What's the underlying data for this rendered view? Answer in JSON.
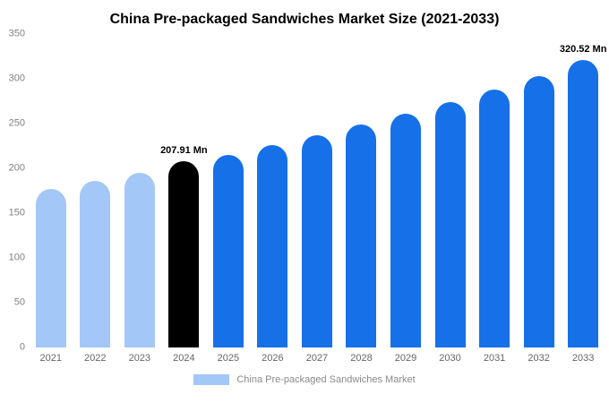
{
  "chart_data": {
    "type": "bar",
    "title": "China Pre-packaged Sandwiches Market Size (2021-2033)",
    "xlabel": "",
    "ylabel": "",
    "categories": [
      "2021",
      "2022",
      "2023",
      "2024",
      "2025",
      "2026",
      "2027",
      "2028",
      "2029",
      "2030",
      "2031",
      "2032",
      "2033"
    ],
    "values": [
      177,
      186,
      195,
      207.91,
      215,
      226,
      237,
      249,
      261,
      274,
      288,
      303,
      320.52
    ],
    "bar_colors": [
      "#A3C7F7",
      "#A3C7F7",
      "#A3C7F7",
      "#000000",
      "#1670E8",
      "#1670E8",
      "#1670E8",
      "#1670E8",
      "#1670E8",
      "#1670E8",
      "#1670E8",
      "#1670E8",
      "#1670E8"
    ],
    "yticks": [
      0,
      50,
      100,
      150,
      200,
      250,
      300,
      350
    ],
    "ylim": [
      0,
      350
    ],
    "grid": false,
    "annotations": [
      {
        "category": "2024",
        "text": "207.91 Mn"
      },
      {
        "category": "2033",
        "text": "320.52 Mn"
      }
    ],
    "legend": {
      "label": "China Pre-packaged Sandwiches Market",
      "swatch_color": "#A3C7F7",
      "position": "bottom"
    }
  }
}
